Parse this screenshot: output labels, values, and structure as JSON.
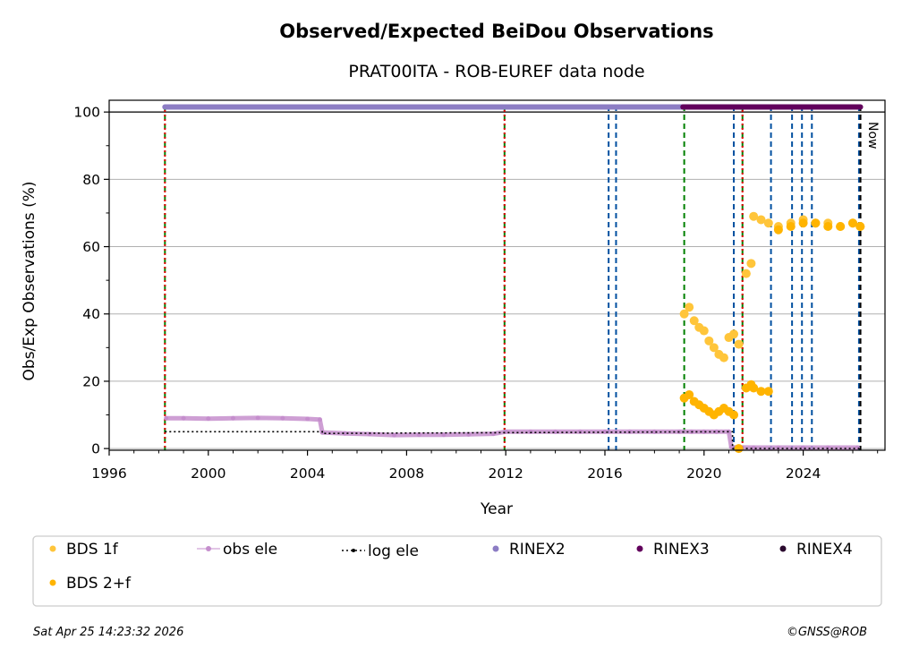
{
  "chart_data": {
    "type": "scatter",
    "title": "Observed/Expected BeiDou Observations",
    "subtitle": "PRAT00ITA - ROB-EUREF data node",
    "xlabel": "Year",
    "ylabel": "Obs/Exp Observations (%)",
    "xlim": [
      1996,
      2027.3
    ],
    "ylim": [
      -0.5,
      103.5
    ],
    "x_ticks": [
      1996,
      2000,
      2004,
      2008,
      2012,
      2016,
      2020,
      2024
    ],
    "y_ticks": [
      0,
      20,
      40,
      60,
      80,
      100
    ],
    "grid": "horizontal",
    "now_label": "Now",
    "now_year": 2026.31,
    "legend": {
      "position": "bottom",
      "entries": [
        {
          "label": "BDS 1f",
          "color": "#ffc53a",
          "style": "dot"
        },
        {
          "label": "obs ele",
          "color": "#c58ecd",
          "style": "line-dot"
        },
        {
          "label": "log ele",
          "color": "#000000",
          "style": "dotted"
        },
        {
          "label": "RINEX2",
          "color": "#8c7dc4",
          "style": "dot"
        },
        {
          "label": "RINEX3",
          "color": "#62005c",
          "style": "dot"
        },
        {
          "label": "RINEX4",
          "color": "#2a0a2e",
          "style": "dot"
        },
        {
          "label": "BDS 2+f",
          "color": "#ffb400",
          "style": "dot"
        }
      ]
    },
    "rinex_bars": [
      {
        "name": "RINEX2",
        "x_start": 1998.25,
        "x_end": 2019.15,
        "y": 101.5,
        "color": "#8c7dc4"
      },
      {
        "name": "RINEX3",
        "x_start": 2019.15,
        "x_end": 2026.31,
        "y": 101.5,
        "color": "#62005c"
      }
    ],
    "event_lines": [
      {
        "x": 1998.25,
        "color": "#008000",
        "style": "dashed"
      },
      {
        "x": 1998.25,
        "color": "#e00000",
        "style": "dotted"
      },
      {
        "x": 2011.95,
        "color": "#008000",
        "style": "dashed"
      },
      {
        "x": 2011.95,
        "color": "#e00000",
        "style": "dotted"
      },
      {
        "x": 2019.2,
        "color": "#008000",
        "style": "dashed"
      },
      {
        "x": 2021.55,
        "color": "#008000",
        "style": "dashed"
      },
      {
        "x": 2021.55,
        "color": "#e00000",
        "style": "dotted"
      },
      {
        "x": 2016.15,
        "color": "#0050a0",
        "style": "dashed"
      },
      {
        "x": 2016.45,
        "color": "#0050a0",
        "style": "dashed"
      },
      {
        "x": 2021.2,
        "color": "#0050a0",
        "style": "dashed"
      },
      {
        "x": 2022.7,
        "color": "#0050a0",
        "style": "dashed"
      },
      {
        "x": 2023.55,
        "color": "#0050a0",
        "style": "dashed"
      },
      {
        "x": 2023.95,
        "color": "#0050a0",
        "style": "dashed"
      },
      {
        "x": 2024.35,
        "color": "#0050a0",
        "style": "dashed"
      },
      {
        "x": 2026.25,
        "color": "#0050a0",
        "style": "dashed"
      },
      {
        "x": 2026.31,
        "color": "#000000",
        "style": "dashed"
      }
    ],
    "series": [
      {
        "name": "obs ele",
        "color": "#c58ecd",
        "x": [
          1998.3,
          1999.0,
          2000.0,
          2001.0,
          2002.0,
          2003.0,
          2004.0,
          2004.5,
          2004.6,
          2005.5,
          2006.5,
          2007.5,
          2008.5,
          2009.5,
          2010.5,
          2011.5,
          2012.0,
          2013.0,
          2014.0,
          2015.0,
          2016.0,
          2017.0,
          2018.0,
          2019.0,
          2019.5,
          2020.0,
          2020.5,
          2021.0,
          2021.1,
          2022.0,
          2023.0,
          2024.0,
          2025.0,
          2026.2
        ],
        "values": [
          9.0,
          9.0,
          8.9,
          9.0,
          9.1,
          9.0,
          8.8,
          8.6,
          4.8,
          4.5,
          4.3,
          4.0,
          4.1,
          4.1,
          4.2,
          4.4,
          5.0,
          5.0,
          5.0,
          5.0,
          5.0,
          5.0,
          5.0,
          5.0,
          5.0,
          5.0,
          5.0,
          5.0,
          0.4,
          0.3,
          0.3,
          0.3,
          0.3,
          0.3
        ]
      },
      {
        "name": "log ele",
        "color": "#000000",
        "x": [
          1998.25,
          2004.6,
          2004.6,
          2021.15,
          2021.15,
          2026.3
        ],
        "values": [
          5.0,
          5.0,
          4.5,
          5.0,
          0.0,
          0.0
        ]
      },
      {
        "name": "BDS 1f",
        "color": "#ffc53a",
        "x": [
          2019.2,
          2019.4,
          2019.6,
          2019.8,
          2020.0,
          2020.2,
          2020.4,
          2020.6,
          2020.8,
          2021.0,
          2021.2,
          2021.4,
          2021.7,
          2021.9,
          2022.0,
          2022.3,
          2022.6,
          2023.0,
          2023.5,
          2024.0,
          2024.5,
          2025.0,
          2025.5,
          2026.0,
          2026.3
        ],
        "values": [
          40,
          42,
          38,
          36,
          35,
          32,
          30,
          28,
          27,
          33,
          34,
          31,
          52,
          55,
          69,
          68,
          67,
          66,
          67,
          68,
          67,
          67,
          66,
          67,
          66
        ]
      },
      {
        "name": "BDS 2+f",
        "color": "#ffb400",
        "x": [
          2019.2,
          2019.4,
          2019.6,
          2019.8,
          2020.0,
          2020.2,
          2020.4,
          2020.6,
          2020.8,
          2021.0,
          2021.2,
          2021.4,
          2021.7,
          2021.9,
          2022.0,
          2022.3,
          2022.6,
          2023.0,
          2023.5,
          2024.0,
          2024.5,
          2025.0,
          2025.5,
          2026.0,
          2026.3
        ],
        "values": [
          15,
          16,
          14,
          13,
          12,
          11,
          10,
          11,
          12,
          11,
          10,
          0,
          18,
          19,
          18,
          17,
          17,
          65,
          66,
          67,
          67,
          66,
          66,
          67,
          66
        ]
      }
    ]
  },
  "footer": {
    "timestamp": "Sat Apr 25 14:23:32 2026",
    "credit": "©GNSS@ROB"
  }
}
